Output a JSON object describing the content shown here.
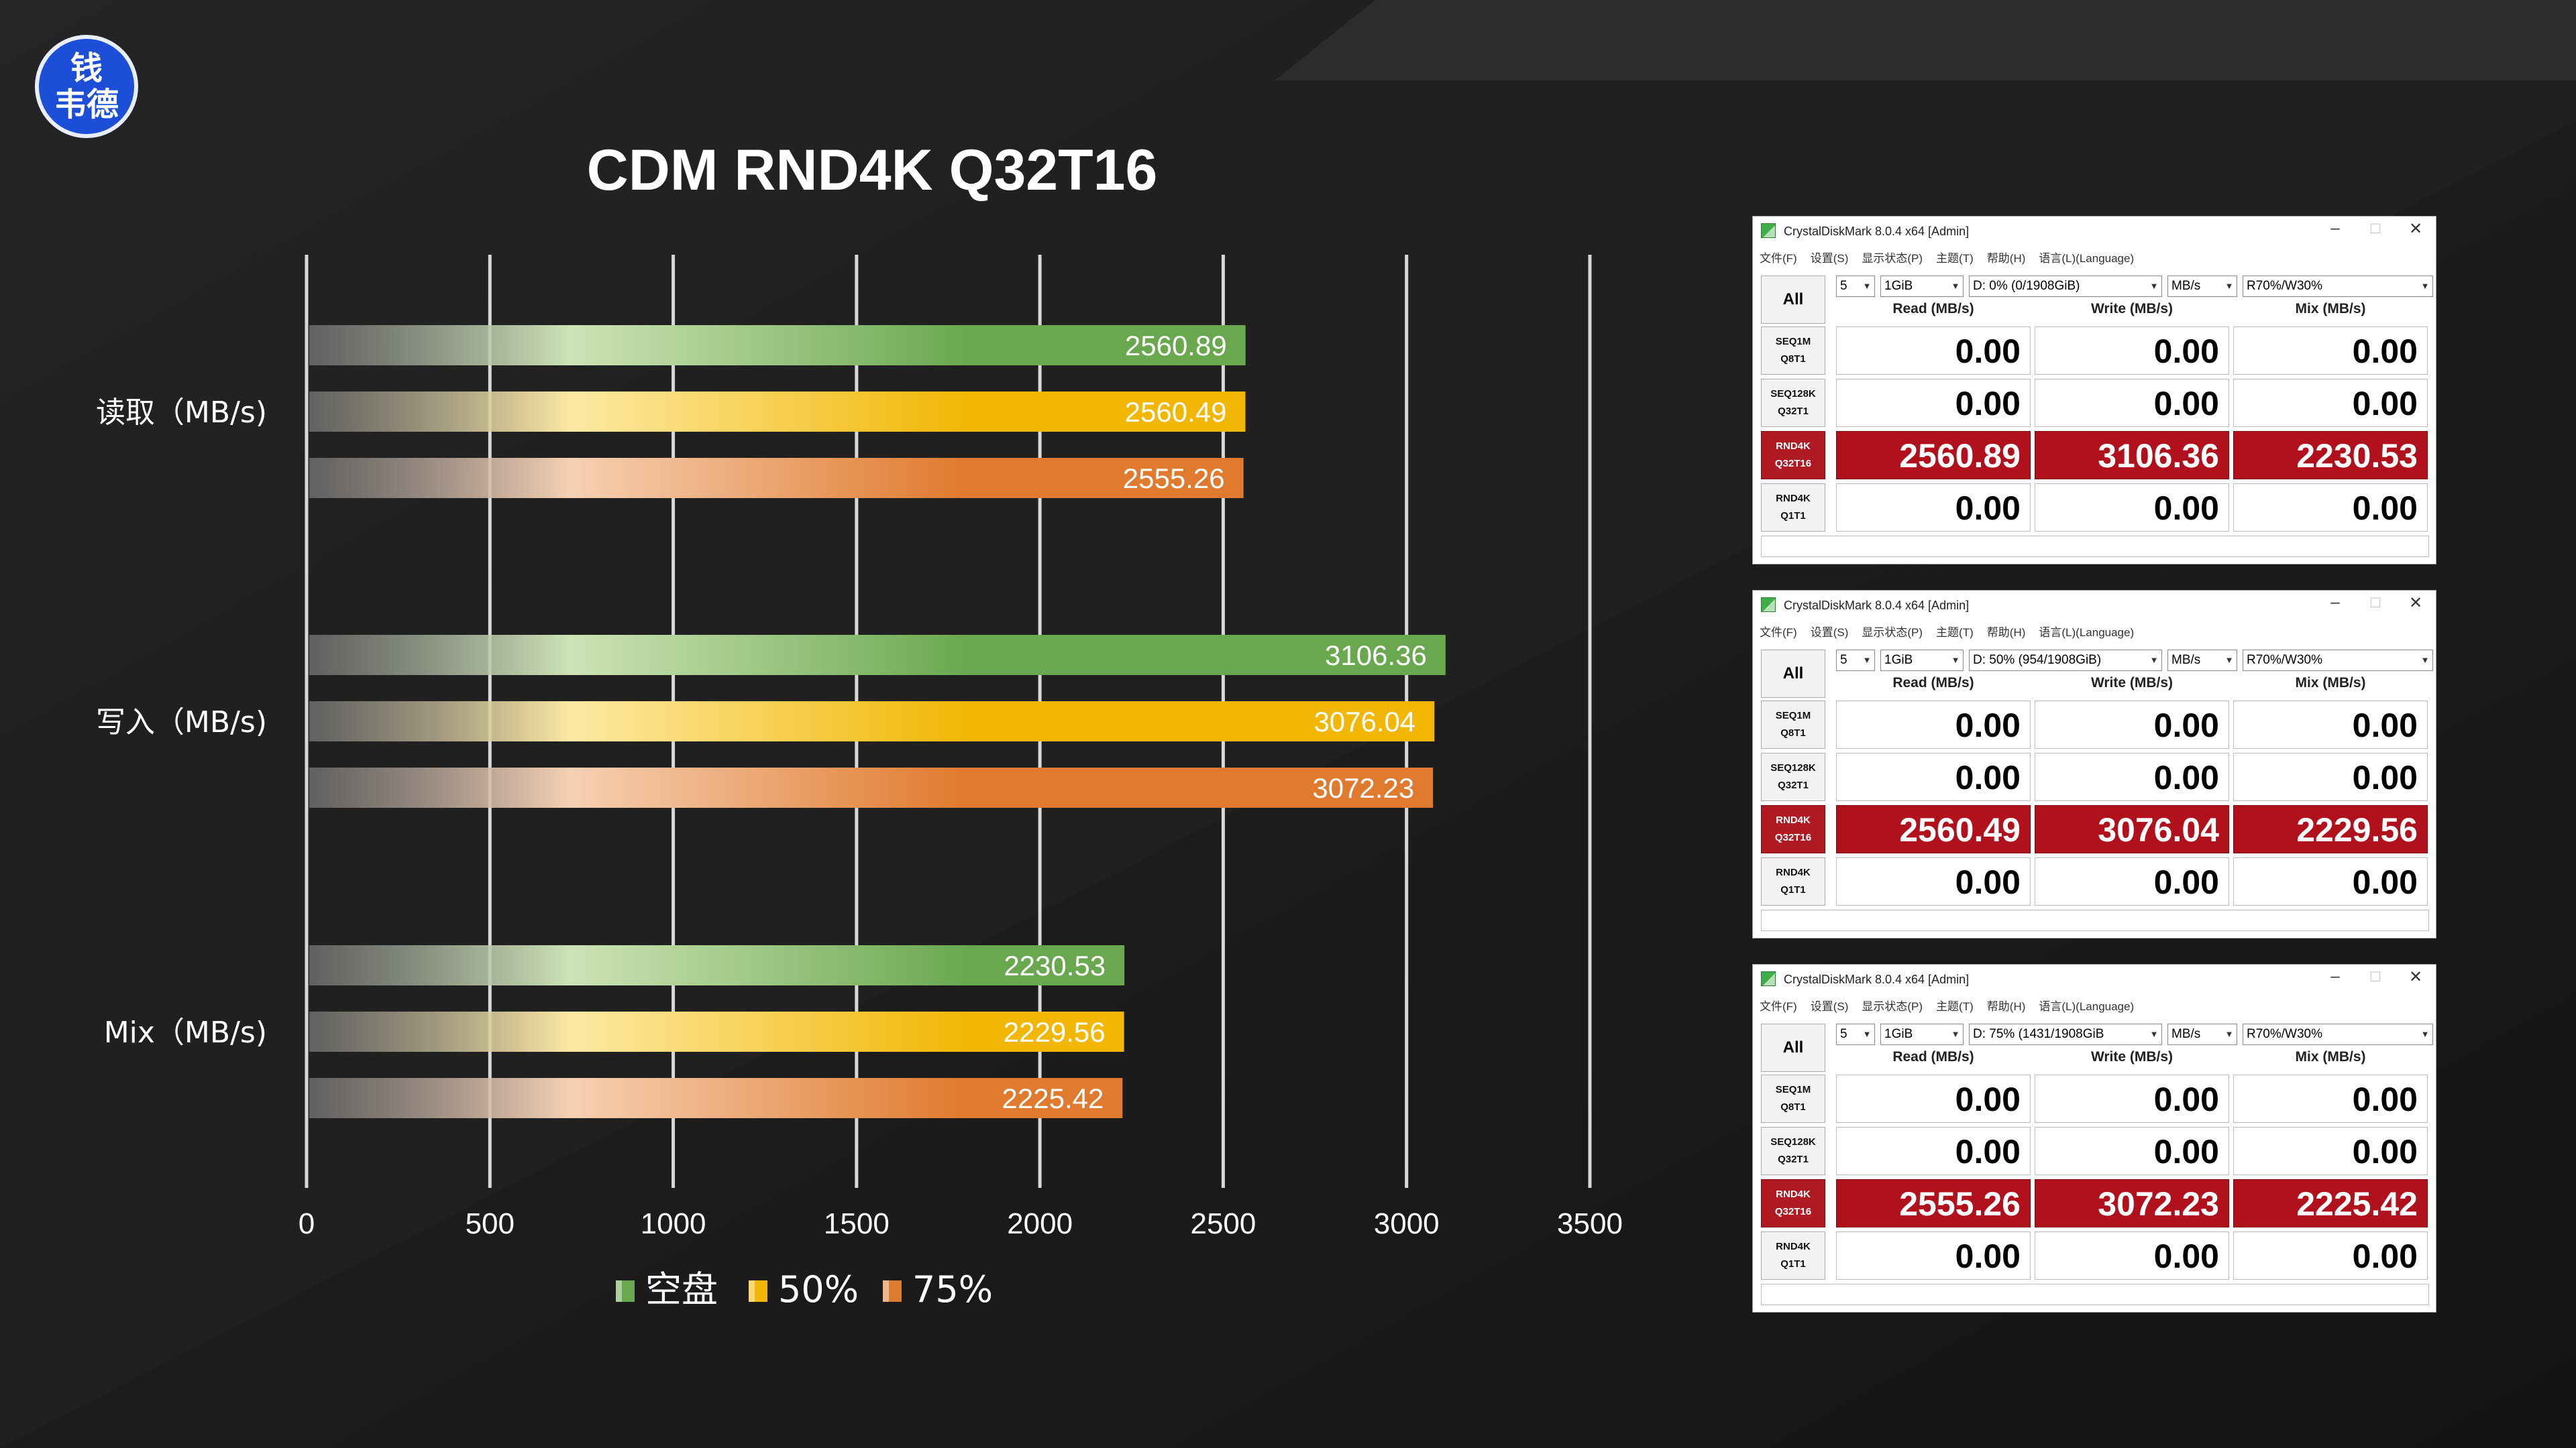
{
  "logo": {
    "line1": "钱",
    "line2": "韦德"
  },
  "chart_data": {
    "type": "bar",
    "orientation": "horizontal",
    "title": "CDM RND4K Q32T16",
    "categories": [
      "读取（MB/s)",
      "写入（MB/s)",
      "Mix（MB/s)"
    ],
    "series": [
      {
        "name": "空盘",
        "color": "#6aa84f",
        "values": [
          2560.89,
          3106.36,
          2230.53
        ]
      },
      {
        "name": "50%",
        "color": "#f2b705",
        "values": [
          2560.49,
          3076.04,
          2229.56
        ]
      },
      {
        "name": "75%",
        "color": "#e07a2e",
        "values": [
          2555.26,
          3072.23,
          2225.42
        ]
      }
    ],
    "value_labels": [
      [
        "2560.89",
        "3106.36",
        "2230.53"
      ],
      [
        "2560.49",
        "3076.04",
        "2229.56"
      ],
      [
        "2555.26",
        "3072.23",
        "2225.42"
      ]
    ],
    "xlim": [
      0,
      3500
    ],
    "xticks": [
      0,
      500,
      1000,
      1500,
      2000,
      2500,
      3000,
      3500
    ],
    "xtick_labels": [
      "0",
      "500",
      "1000",
      "1500",
      "2000",
      "2500",
      "3000",
      "3500"
    ],
    "grid": true,
    "legend_position": "bottom"
  },
  "panels": [
    {
      "title": "CrystalDiskMark 8.0.4 x64 [Admin]",
      "menu": [
        "文件(F)",
        "设置(S)",
        "显示状态(P)",
        "主题(T)",
        "帮助(H)",
        "语言(L)(Language)"
      ],
      "all_label": "All",
      "count": "5",
      "size": "1GiB",
      "drive": "D: 0% (0/1908GiB)",
      "unit": "MB/s",
      "mix": "R70%/W30%",
      "headers": [
        "Read (MB/s)",
        "Write (MB/s)",
        "Mix (MB/s)"
      ],
      "rows": [
        {
          "l1": "SEQ1M",
          "l2": "Q8T1",
          "read": "0.00",
          "write": "0.00",
          "mix": "0.00"
        },
        {
          "l1": "SEQ128K",
          "l2": "Q32T1",
          "read": "0.00",
          "write": "0.00",
          "mix": "0.00"
        },
        {
          "l1": "RND4K",
          "l2": "Q32T16",
          "read": "2560.89",
          "write": "3106.36",
          "mix": "2230.53"
        },
        {
          "l1": "RND4K",
          "l2": "Q1T1",
          "read": "0.00",
          "write": "0.00",
          "mix": "0.00"
        }
      ]
    },
    {
      "title": "CrystalDiskMark 8.0.4 x64 [Admin]",
      "menu": [
        "文件(F)",
        "设置(S)",
        "显示状态(P)",
        "主题(T)",
        "帮助(H)",
        "语言(L)(Language)"
      ],
      "all_label": "All",
      "count": "5",
      "size": "1GiB",
      "drive": "D: 50% (954/1908GiB)",
      "unit": "MB/s",
      "mix": "R70%/W30%",
      "headers": [
        "Read (MB/s)",
        "Write (MB/s)",
        "Mix (MB/s)"
      ],
      "rows": [
        {
          "l1": "SEQ1M",
          "l2": "Q8T1",
          "read": "0.00",
          "write": "0.00",
          "mix": "0.00"
        },
        {
          "l1": "SEQ128K",
          "l2": "Q32T1",
          "read": "0.00",
          "write": "0.00",
          "mix": "0.00"
        },
        {
          "l1": "RND4K",
          "l2": "Q32T16",
          "read": "2560.49",
          "write": "3076.04",
          "mix": "2229.56"
        },
        {
          "l1": "RND4K",
          "l2": "Q1T1",
          "read": "0.00",
          "write": "0.00",
          "mix": "0.00"
        }
      ]
    },
    {
      "title": "CrystalDiskMark 8.0.4 x64 [Admin]",
      "menu": [
        "文件(F)",
        "设置(S)",
        "显示状态(P)",
        "主题(T)",
        "帮助(H)",
        "语言(L)(Language)"
      ],
      "all_label": "All",
      "count": "5",
      "size": "1GiB",
      "drive": "D: 75% (1431/1908GiB",
      "unit": "MB/s",
      "mix": "R70%/W30%",
      "headers": [
        "Read (MB/s)",
        "Write (MB/s)",
        "Mix (MB/s)"
      ],
      "rows": [
        {
          "l1": "SEQ1M",
          "l2": "Q8T1",
          "read": "0.00",
          "write": "0.00",
          "mix": "0.00"
        },
        {
          "l1": "SEQ128K",
          "l2": "Q32T1",
          "read": "0.00",
          "write": "0.00",
          "mix": "0.00"
        },
        {
          "l1": "RND4K",
          "l2": "Q32T16",
          "read": "2555.26",
          "write": "3072.23",
          "mix": "2225.42"
        },
        {
          "l1": "RND4K",
          "l2": "Q1T1",
          "read": "0.00",
          "write": "0.00",
          "mix": "0.00"
        }
      ]
    }
  ]
}
